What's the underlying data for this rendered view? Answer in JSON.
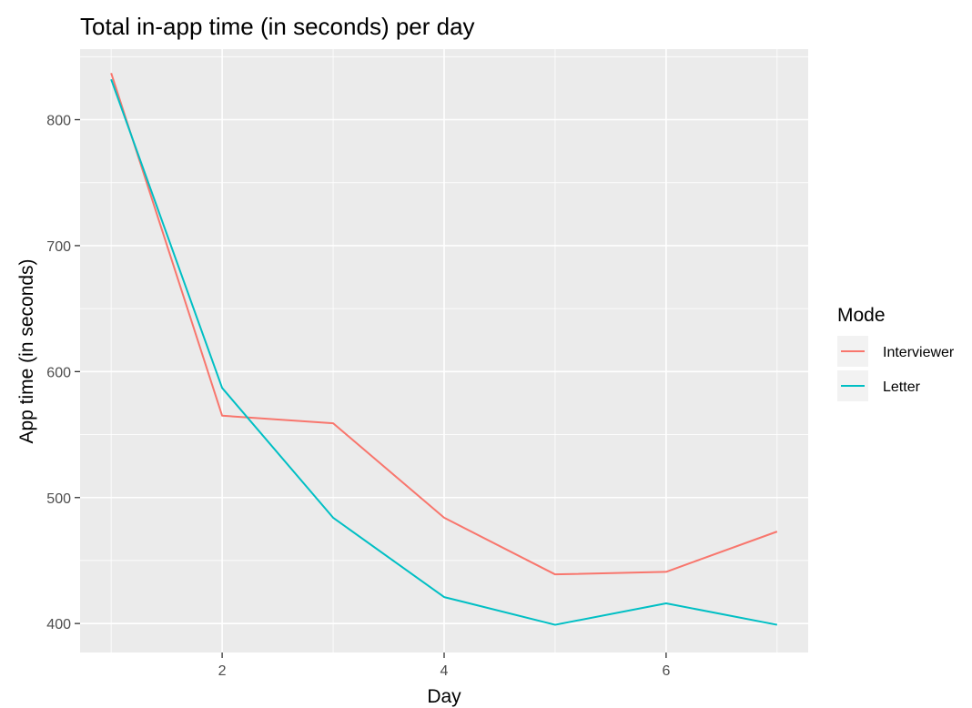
{
  "chart_data": {
    "type": "line",
    "title": "Total in-app time (in seconds) per day",
    "xlabel": "Day",
    "ylabel": "App time (in seconds)",
    "x": [
      1,
      2,
      3,
      4,
      5,
      6,
      7
    ],
    "xlim": [
      0.72,
      7.28
    ],
    "ylim": [
      377,
      856
    ],
    "xticks": [
      2,
      4,
      6
    ],
    "yticks": [
      400,
      500,
      600,
      700,
      800
    ],
    "grid": true,
    "legend": {
      "title": "Mode",
      "position": "right"
    },
    "series": [
      {
        "name": "Interviewer",
        "color": "#F8766D",
        "values": [
          837,
          565,
          559,
          484,
          439,
          441,
          473
        ]
      },
      {
        "name": "Letter",
        "color": "#00BFC4",
        "values": [
          832,
          587,
          484,
          421,
          399,
          416,
          399
        ]
      }
    ]
  }
}
